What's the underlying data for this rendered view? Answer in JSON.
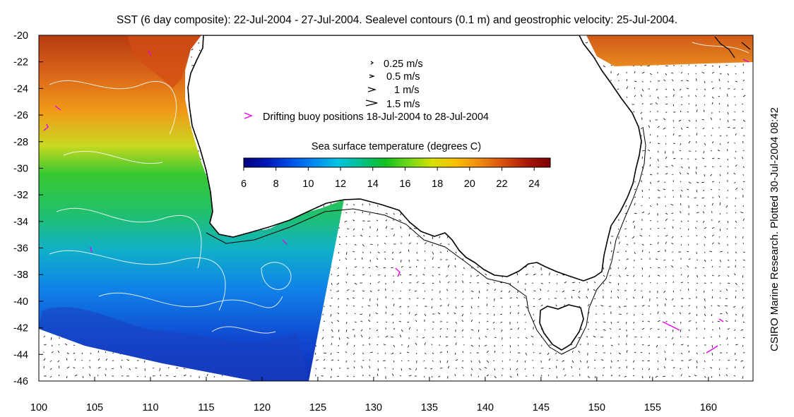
{
  "title": "SST (6 day composite): 22-Jul-2004 - 27-Jul-2004. Sealevel contours (0.1 m) and geostrophic velocity: 25-Jul-2004.",
  "side_label": "CSIRO Marine Research. Plotted 30-Jul-2004 08:42",
  "map": {
    "lon_range": [
      100,
      164
    ],
    "lat_range": [
      -46,
      -20
    ],
    "x_ticks": [
      "100",
      "105",
      "110",
      "115",
      "120",
      "125",
      "130",
      "135",
      "140",
      "145",
      "150",
      "155",
      "160"
    ],
    "y_ticks": [
      "-20",
      "-22",
      "-24",
      "-26",
      "-28",
      "-30",
      "-32",
      "-34",
      "-36",
      "-38",
      "-40",
      "-42",
      "-44",
      "-46"
    ]
  },
  "legend": {
    "velocity_scale": [
      "0.25 m/s",
      "0.5 m/s",
      "1 m/s",
      "1.5 m/s"
    ],
    "buoy_label": "Drifting buoy positions 18-Jul-2004 to 28-Jul-2004",
    "buoy_color": "#e800e8"
  },
  "colorbar": {
    "title": "Sea surface temperature (degrees C)",
    "ticks": [
      "6",
      "8",
      "10",
      "12",
      "14",
      "16",
      "18",
      "20",
      "22",
      "24"
    ],
    "range": [
      6,
      25
    ],
    "colors": [
      "#00007f",
      "#0019b8",
      "#0050e8",
      "#008af0",
      "#00c4e0",
      "#00c08a",
      "#10c020",
      "#70d818",
      "#d8e000",
      "#f8c000",
      "#f08a10",
      "#d85010",
      "#a81808",
      "#7f0000"
    ]
  }
}
